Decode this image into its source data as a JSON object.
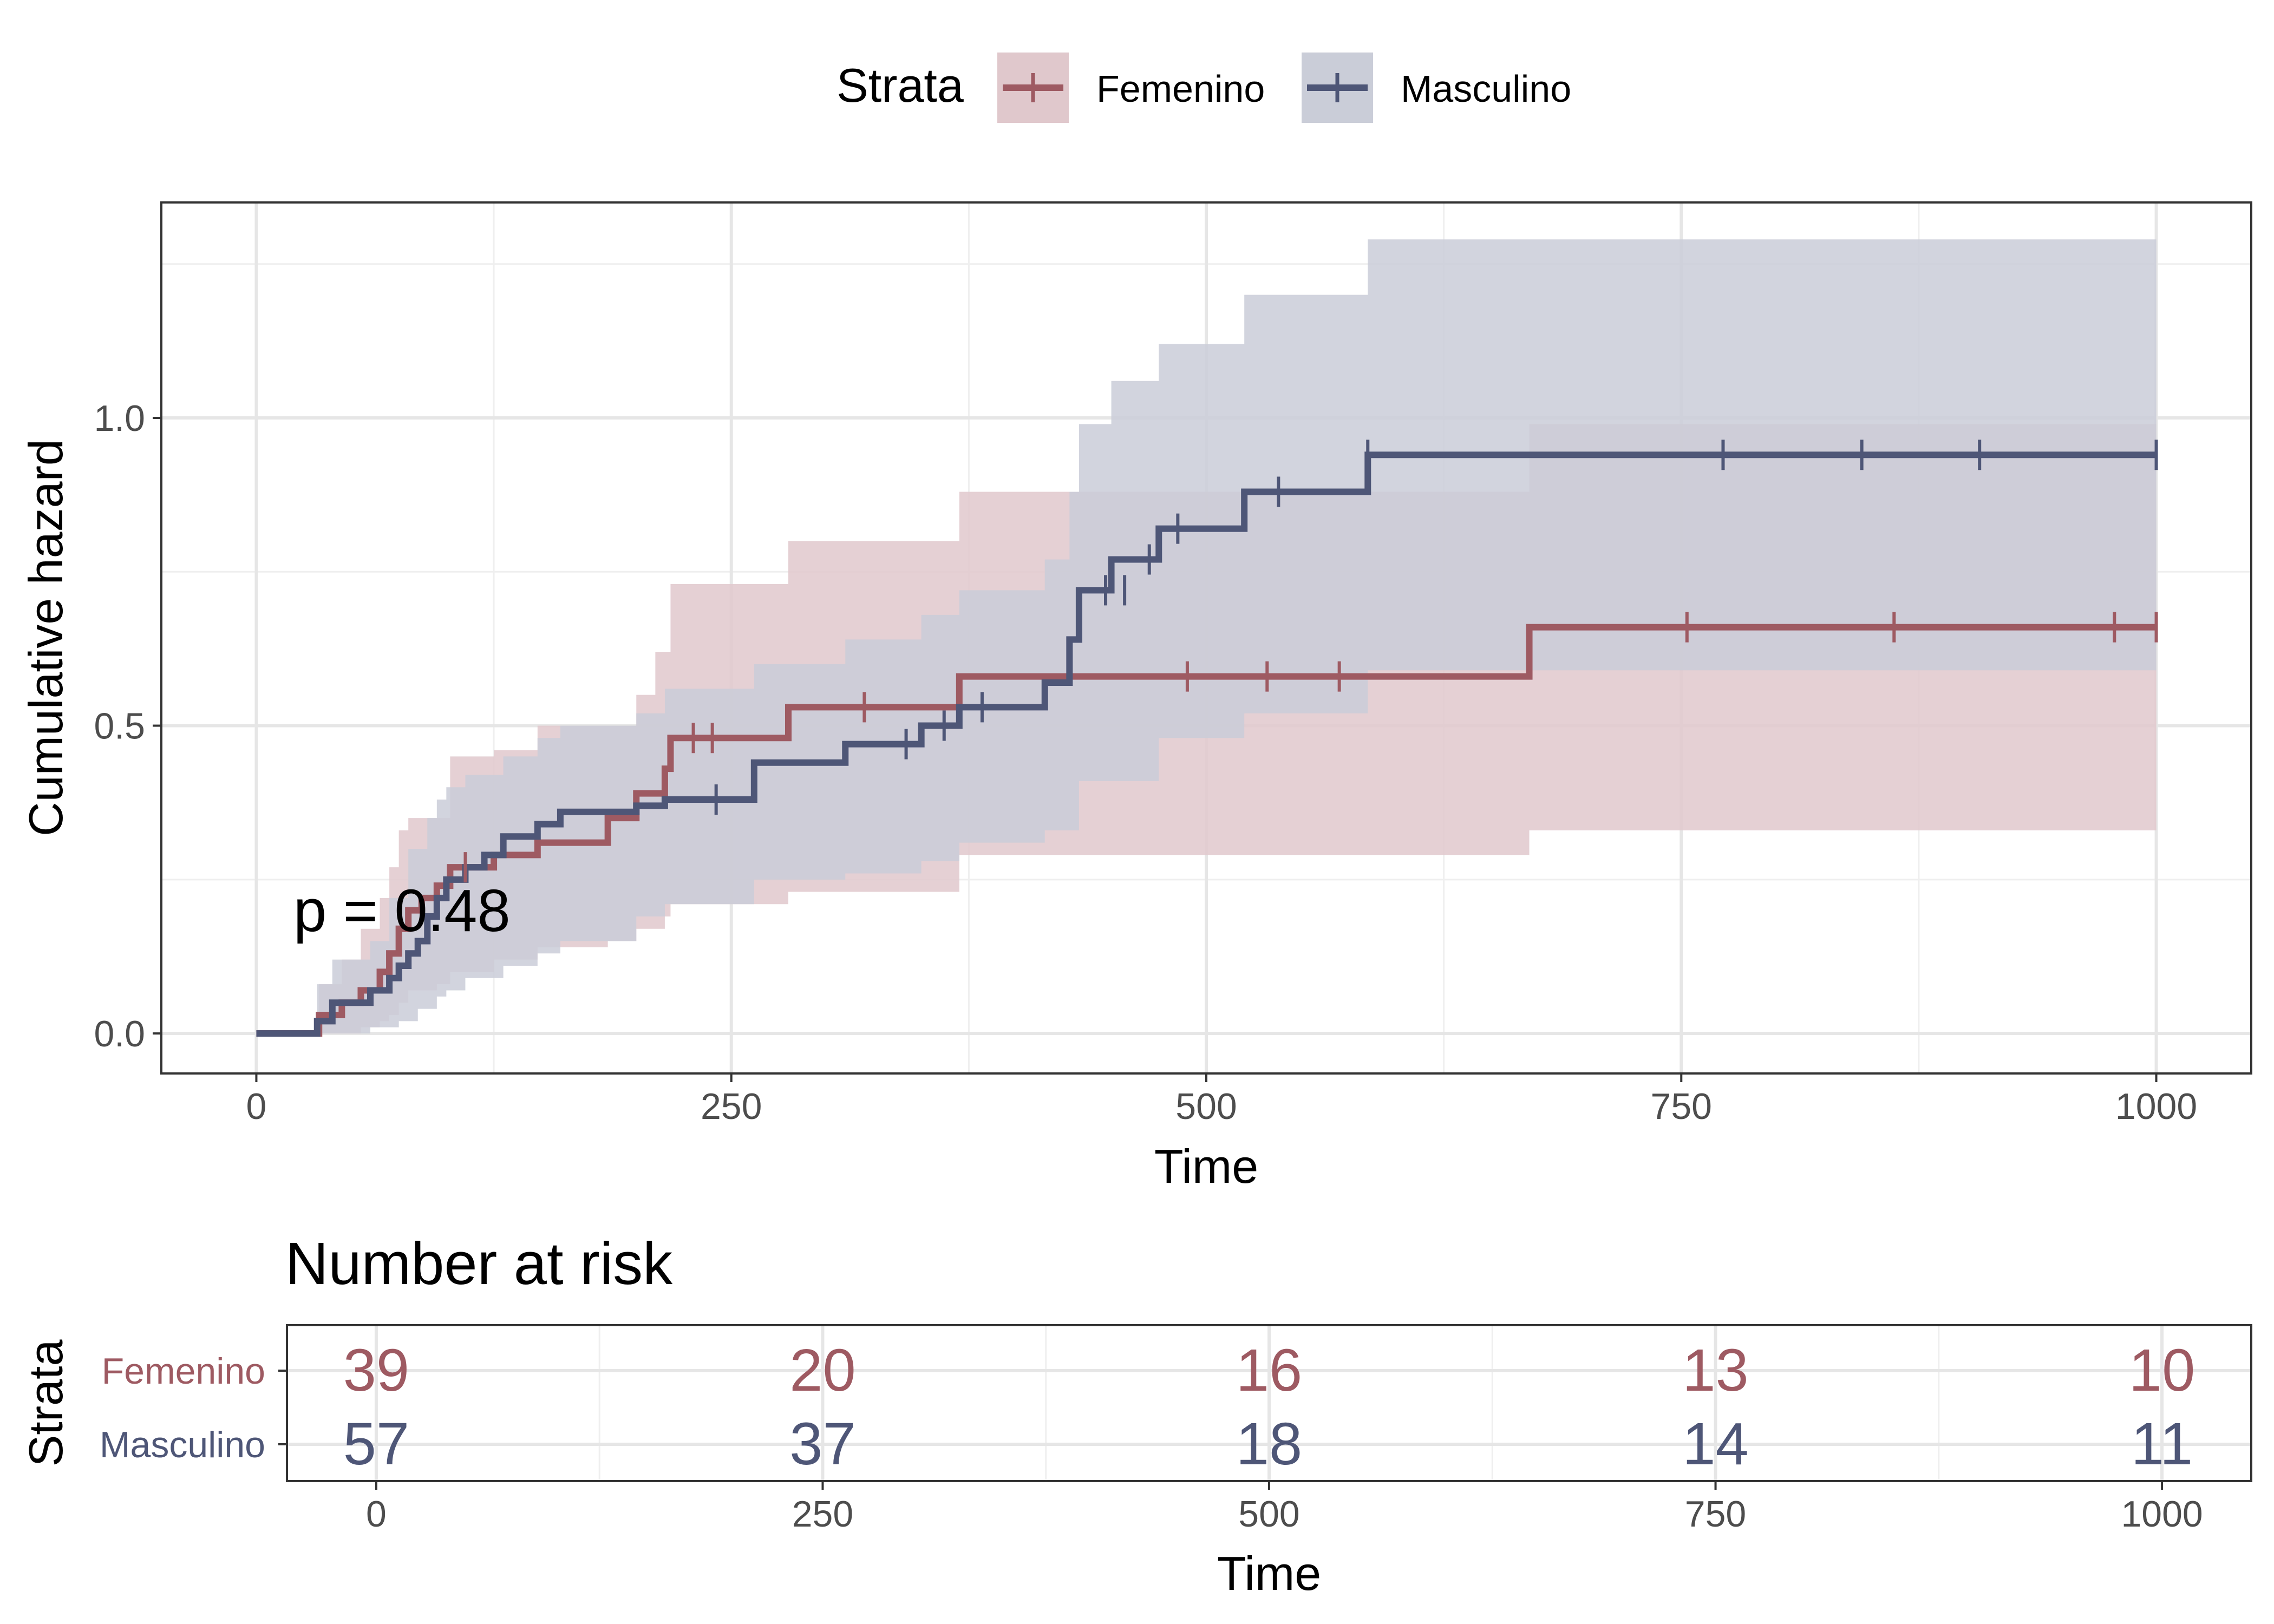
{
  "legend": {
    "title": "Strata",
    "items": [
      {
        "label": "Femenino",
        "color": "#9E5A62"
      },
      {
        "label": "Masculino",
        "color": "#4E5677"
      }
    ]
  },
  "annotation": "p = 0.48",
  "risk_table": {
    "title": "Number at risk",
    "ylabel": "Strata",
    "xlabel": "Time",
    "times": [
      0,
      250,
      500,
      750,
      1000
    ],
    "rows": [
      {
        "label": "Femenino",
        "color": "#9E5A62",
        "values": [
          "39",
          "20",
          "16",
          "13",
          "10"
        ]
      },
      {
        "label": "Masculino",
        "color": "#4E5677",
        "values": [
          "57",
          "37",
          "18",
          "14",
          "11"
        ]
      }
    ],
    "xticks": [
      "0",
      "250",
      "500",
      "750",
      "1000"
    ]
  },
  "chart_data": {
    "type": "line",
    "step": true,
    "title": "",
    "xlabel": "Time",
    "ylabel": "Cumulative hazard",
    "xlim": [
      -50,
      1050
    ],
    "ylim": [
      -0.065,
      1.35
    ],
    "xticks": [
      0,
      250,
      500,
      750,
      1000
    ],
    "xtick_labels": [
      "0",
      "250",
      "500",
      "750",
      "1000"
    ],
    "yticks": [
      0.0,
      0.5,
      1.0
    ],
    "ytick_labels": [
      "0.0",
      "0.5",
      "1.0"
    ],
    "grid": true,
    "legend_position": "top",
    "series": [
      {
        "name": "Femenino",
        "color": "#9E5A62",
        "fill": "#E0C8CC",
        "steps": [
          [
            0,
            0.0
          ],
          [
            33,
            0.03
          ],
          [
            45,
            0.05
          ],
          [
            55,
            0.07
          ],
          [
            65,
            0.1
          ],
          [
            70,
            0.13
          ],
          [
            75,
            0.17
          ],
          [
            80,
            0.2
          ],
          [
            87,
            0.22
          ],
          [
            95,
            0.24
          ],
          [
            102,
            0.27
          ],
          [
            125,
            0.29
          ],
          [
            148,
            0.31
          ],
          [
            185,
            0.35
          ],
          [
            200,
            0.39
          ],
          [
            215,
            0.43
          ],
          [
            218,
            0.48
          ],
          [
            280,
            0.53
          ],
          [
            370,
            0.58
          ],
          [
            670,
            0.66
          ],
          [
            1000,
            0.66
          ]
        ],
        "ci_lower": [
          [
            0,
            0.0
          ],
          [
            33,
            0.0
          ],
          [
            45,
            0.0
          ],
          [
            55,
            0.01
          ],
          [
            65,
            0.02
          ],
          [
            70,
            0.03
          ],
          [
            75,
            0.05
          ],
          [
            80,
            0.07
          ],
          [
            95,
            0.08
          ],
          [
            102,
            0.1
          ],
          [
            125,
            0.12
          ],
          [
            148,
            0.14
          ],
          [
            185,
            0.15
          ],
          [
            200,
            0.17
          ],
          [
            215,
            0.19
          ],
          [
            218,
            0.21
          ],
          [
            280,
            0.23
          ],
          [
            370,
            0.29
          ],
          [
            670,
            0.33
          ],
          [
            1000,
            0.33
          ]
        ],
        "ci_upper": [
          [
            0,
            0.0
          ],
          [
            33,
            0.08
          ],
          [
            45,
            0.12
          ],
          [
            55,
            0.17
          ],
          [
            65,
            0.22
          ],
          [
            70,
            0.27
          ],
          [
            75,
            0.33
          ],
          [
            80,
            0.35
          ],
          [
            102,
            0.45
          ],
          [
            125,
            0.46
          ],
          [
            148,
            0.5
          ],
          [
            200,
            0.55
          ],
          [
            210,
            0.62
          ],
          [
            218,
            0.73
          ],
          [
            280,
            0.8
          ],
          [
            370,
            0.88
          ],
          [
            430,
            0.88
          ],
          [
            670,
            0.99
          ],
          [
            1000,
            0.99
          ]
        ],
        "censored": [
          [
            110,
            0.27
          ],
          [
            230,
            0.48
          ],
          [
            240,
            0.48
          ],
          [
            320,
            0.53
          ],
          [
            490,
            0.58
          ],
          [
            532,
            0.58
          ],
          [
            570,
            0.58
          ],
          [
            753,
            0.66
          ],
          [
            862,
            0.66
          ],
          [
            978,
            0.66
          ],
          [
            1000,
            0.66
          ]
        ]
      },
      {
        "name": "Masculino",
        "color": "#4E5677",
        "fill": "#CACDD8",
        "steps": [
          [
            0,
            0.0
          ],
          [
            32,
            0.02
          ],
          [
            40,
            0.05
          ],
          [
            60,
            0.07
          ],
          [
            70,
            0.09
          ],
          [
            75,
            0.11
          ],
          [
            80,
            0.13
          ],
          [
            85,
            0.15
          ],
          [
            90,
            0.19
          ],
          [
            95,
            0.22
          ],
          [
            100,
            0.25
          ],
          [
            110,
            0.27
          ],
          [
            120,
            0.29
          ],
          [
            130,
            0.32
          ],
          [
            148,
            0.34
          ],
          [
            160,
            0.36
          ],
          [
            200,
            0.37
          ],
          [
            215,
            0.38
          ],
          [
            262,
            0.44
          ],
          [
            310,
            0.47
          ],
          [
            350,
            0.5
          ],
          [
            370,
            0.53
          ],
          [
            415,
            0.57
          ],
          [
            428,
            0.64
          ],
          [
            433,
            0.72
          ],
          [
            450,
            0.77
          ],
          [
            475,
            0.82
          ],
          [
            520,
            0.88
          ],
          [
            585,
            0.94
          ],
          [
            1000,
            0.94
          ]
        ],
        "ci_lower": [
          [
            0,
            0.0
          ],
          [
            32,
            0.0
          ],
          [
            40,
            0.0
          ],
          [
            60,
            0.01
          ],
          [
            75,
            0.02
          ],
          [
            85,
            0.04
          ],
          [
            95,
            0.06
          ],
          [
            100,
            0.07
          ],
          [
            110,
            0.09
          ],
          [
            130,
            0.11
          ],
          [
            148,
            0.13
          ],
          [
            160,
            0.15
          ],
          [
            200,
            0.19
          ],
          [
            215,
            0.21
          ],
          [
            262,
            0.25
          ],
          [
            310,
            0.26
          ],
          [
            350,
            0.28
          ],
          [
            370,
            0.31
          ],
          [
            415,
            0.33
          ],
          [
            433,
            0.41
          ],
          [
            475,
            0.48
          ],
          [
            520,
            0.52
          ],
          [
            585,
            0.59
          ],
          [
            1000,
            0.59
          ]
        ],
        "ci_upper": [
          [
            0,
            0.0
          ],
          [
            32,
            0.08
          ],
          [
            40,
            0.12
          ],
          [
            60,
            0.15
          ],
          [
            70,
            0.22
          ],
          [
            80,
            0.3
          ],
          [
            90,
            0.35
          ],
          [
            95,
            0.38
          ],
          [
            100,
            0.4
          ],
          [
            110,
            0.42
          ],
          [
            130,
            0.45
          ],
          [
            148,
            0.48
          ],
          [
            160,
            0.5
          ],
          [
            200,
            0.52
          ],
          [
            215,
            0.56
          ],
          [
            262,
            0.6
          ],
          [
            310,
            0.64
          ],
          [
            350,
            0.68
          ],
          [
            370,
            0.72
          ],
          [
            415,
            0.77
          ],
          [
            428,
            0.88
          ],
          [
            433,
            0.99
          ],
          [
            450,
            1.06
          ],
          [
            475,
            1.12
          ],
          [
            520,
            1.2
          ],
          [
            585,
            1.29
          ],
          [
            1000,
            1.29
          ]
        ],
        "censored": [
          [
            242,
            0.38
          ],
          [
            342,
            0.47
          ],
          [
            362,
            0.5
          ],
          [
            382,
            0.53
          ],
          [
            447,
            0.72
          ],
          [
            457,
            0.72
          ],
          [
            470,
            0.77
          ],
          [
            485,
            0.82
          ],
          [
            538,
            0.88
          ],
          [
            585,
            0.94
          ],
          [
            772,
            0.94
          ],
          [
            845,
            0.94
          ],
          [
            907,
            0.94
          ],
          [
            1000,
            0.94
          ]
        ]
      }
    ]
  }
}
